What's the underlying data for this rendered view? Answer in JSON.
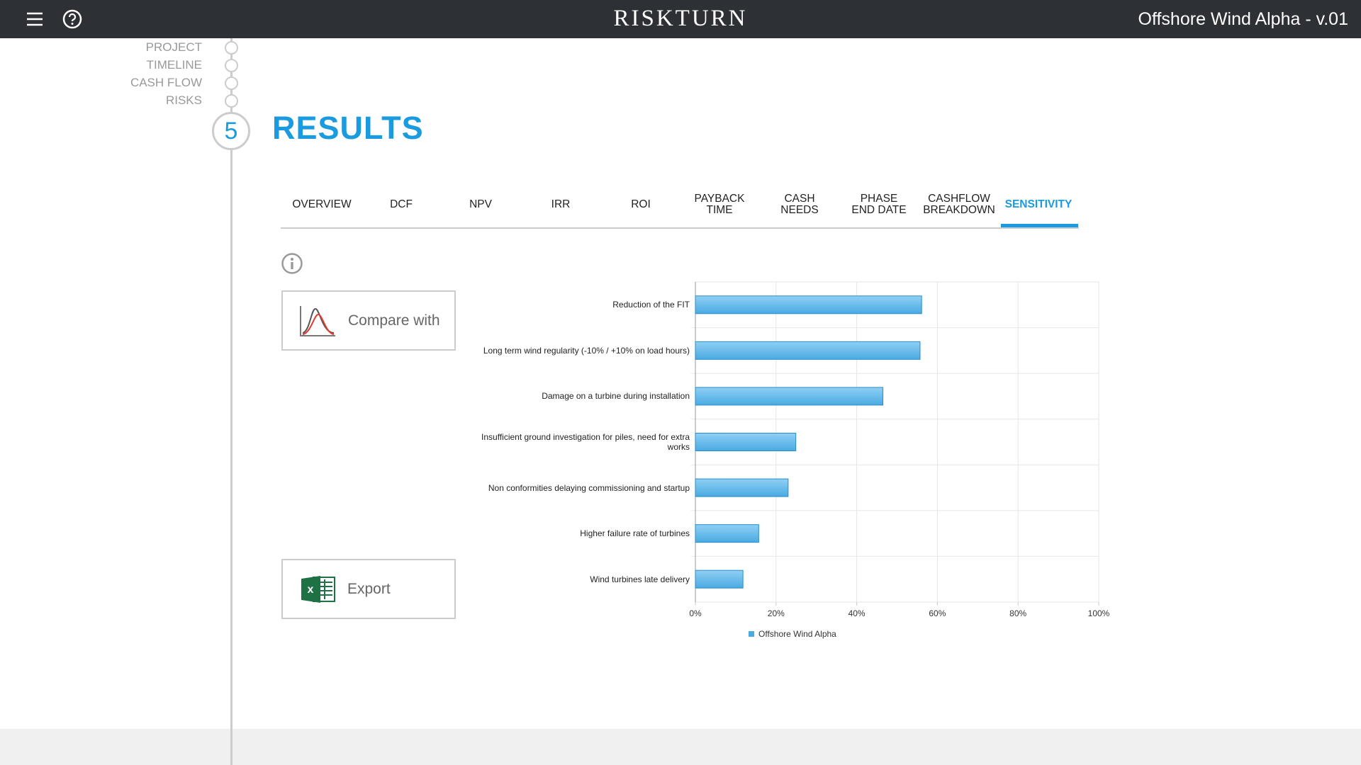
{
  "header": {
    "logo": "RISKTURN",
    "project_title": "Offshore Wind Alpha - v.01"
  },
  "nav": {
    "steps": [
      "PROJECT",
      "TIMELINE",
      "CASH FLOW",
      "RISKS"
    ],
    "current_number": "5",
    "current_title": "RESULTS"
  },
  "tabs": [
    {
      "lines": [
        "OVERVIEW"
      ]
    },
    {
      "lines": [
        "DCF"
      ]
    },
    {
      "lines": [
        "NPV"
      ]
    },
    {
      "lines": [
        "IRR"
      ]
    },
    {
      "lines": [
        "ROI"
      ]
    },
    {
      "lines": [
        "PAYBACK",
        "TIME"
      ]
    },
    {
      "lines": [
        "CASH",
        "NEEDS"
      ]
    },
    {
      "lines": [
        "PHASE",
        "END DATE"
      ]
    },
    {
      "lines": [
        "CASHFLOW",
        "BREAKDOWN"
      ]
    },
    {
      "lines": [
        "SENSITIVITY"
      ]
    }
  ],
  "buttons": {
    "compare": "Compare with",
    "export": "Export"
  },
  "chart_data": {
    "type": "hbar",
    "categories": [
      "Reduction of the FIT",
      "Long term wind regularity (-10% / +10% on load hours)",
      "Damage on a turbine during installation",
      "Insufficient ground investigation for piles, need for extra works",
      "Non conformities delaying commissioning and startup",
      "Higher failure rate of turbines",
      "Wind turbines late delivery"
    ],
    "series": [
      {
        "name": "Offshore Wind Alpha",
        "color": "#4aaae2",
        "values": [
          56.1,
          55.7,
          46.5,
          24.9,
          23.0,
          15.7,
          11.8
        ]
      }
    ],
    "xlim": [
      0,
      100
    ],
    "xticks": [
      {
        "value": 0,
        "label": "0%"
      },
      {
        "value": 20,
        "label": "20%"
      },
      {
        "value": 40,
        "label": "40%"
      },
      {
        "value": 60,
        "label": "60%"
      },
      {
        "value": 80,
        "label": "80%"
      },
      {
        "value": 100,
        "label": "100%"
      }
    ],
    "grid": true
  }
}
